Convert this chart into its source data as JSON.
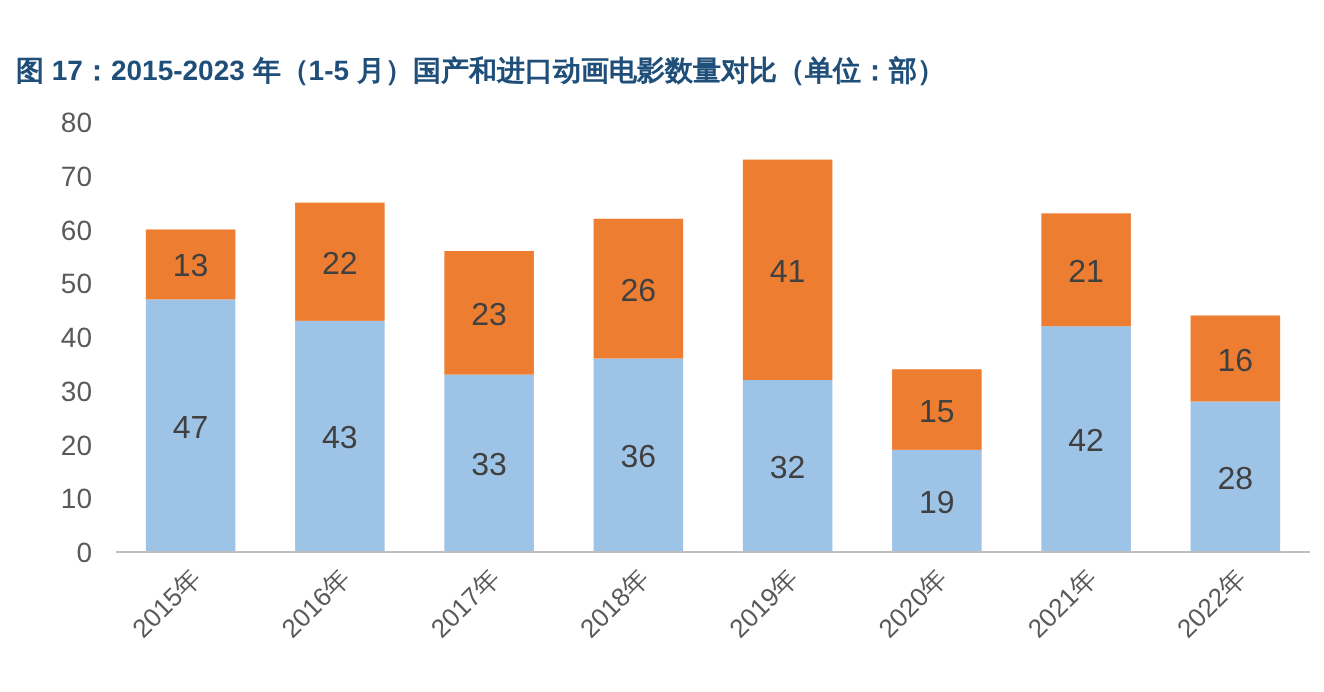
{
  "chart_data": {
    "type": "bar",
    "title": "图 17：2015-2023 年（1-5 月）国产和进口动画电影数量对比（单位：部）",
    "categories": [
      "2015年",
      "2016年",
      "2017年",
      "2018年",
      "2019年",
      "2020年",
      "2021年",
      "2022年"
    ],
    "series": [
      {
        "color": "#9dc3e6",
        "values": [
          47,
          43,
          33,
          36,
          32,
          19,
          42,
          28
        ]
      },
      {
        "color": "#ed7d31",
        "values": [
          13,
          22,
          23,
          26,
          41,
          15,
          21,
          16
        ]
      }
    ],
    "stacked": true,
    "ylim": [
      0,
      80
    ],
    "yticks": [
      0,
      10,
      20,
      30,
      40,
      50,
      60,
      70,
      80
    ],
    "data_labels": true
  }
}
